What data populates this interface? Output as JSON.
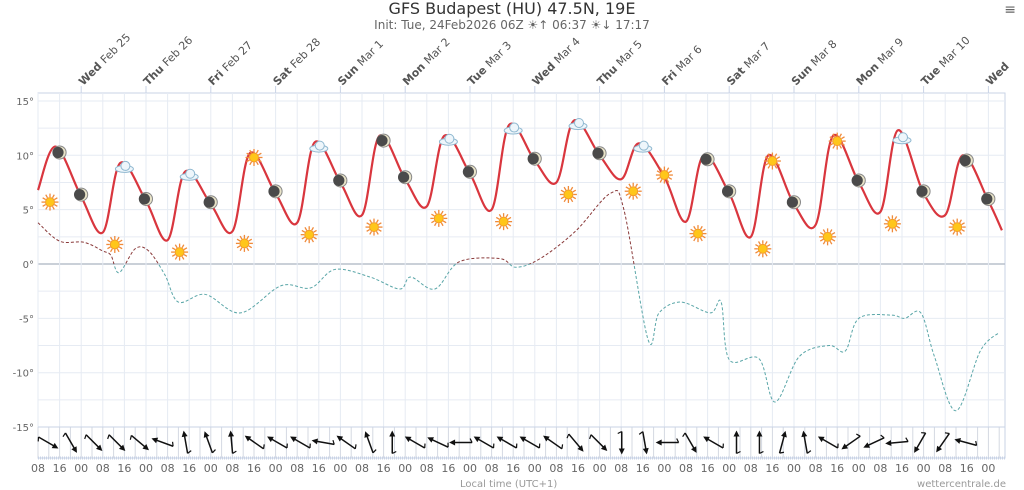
{
  "chart_data": {
    "type": "line",
    "title": "GFS Budapest (HU) 47.5N, 19E",
    "subtitle_init": "Init: Tue, 24Feb2026 06Z",
    "sunrise": "06:37",
    "sunset": "17:17",
    "xlabel": "Local time (UTC+1)",
    "credit": "wettercentrale.de",
    "yticks": [
      "15°",
      "10°",
      "5°",
      "0°",
      "-5°",
      "-10°",
      "-15°"
    ],
    "ytick_values": [
      15,
      10,
      5,
      0,
      -5,
      -10,
      -15
    ],
    "ylim": [
      -15,
      15
    ],
    "x_unit": "hours since Tue Feb 24 08:00",
    "xtick_labels": [
      "08",
      "16",
      "00",
      "08",
      "16",
      "00",
      "08",
      "16",
      "00",
      "08",
      "16",
      "00",
      "08",
      "16",
      "00",
      "08",
      "16",
      "00",
      "08",
      "16",
      "00",
      "08",
      "16",
      "00",
      "08",
      "16",
      "00",
      "08",
      "16",
      "00",
      "08",
      "16",
      "00",
      "08",
      "16",
      "00",
      "08",
      "16",
      "00",
      "08",
      "16",
      "00",
      "08",
      "16",
      "00"
    ],
    "days": [
      {
        "dow": "Wed",
        "date": "Feb 25"
      },
      {
        "dow": "Thu",
        "date": "Feb 26"
      },
      {
        "dow": "Fri",
        "date": "Feb 27"
      },
      {
        "dow": "Sat",
        "date": "Feb 28"
      },
      {
        "dow": "Sun",
        "date": "Mar 1"
      },
      {
        "dow": "Mon",
        "date": "Mar 2"
      },
      {
        "dow": "Tue",
        "date": "Mar 3"
      },
      {
        "dow": "Wed",
        "date": "Mar 4"
      },
      {
        "dow": "Thu",
        "date": "Mar 5"
      },
      {
        "dow": "Fri",
        "date": "Mar 6"
      },
      {
        "dow": "Sat",
        "date": "Mar 7"
      },
      {
        "dow": "Sun",
        "date": "Mar 8"
      },
      {
        "dow": "Mon",
        "date": "Mar 9"
      },
      {
        "dow": "Tue",
        "date": "Mar 10"
      },
      {
        "dow": "Wed",
        "date": ""
      }
    ],
    "series": [
      {
        "name": "Temperature",
        "color": "#d9363e",
        "daily": [
          [
            6.8,
            10.8,
            6.2
          ],
          [
            2.9,
            9.3,
            5.8
          ],
          [
            2.2,
            8.5,
            5.5
          ],
          [
            3.0,
            10.2,
            6.5
          ],
          [
            3.8,
            11.2,
            7.5
          ],
          [
            4.5,
            11.8,
            7.8
          ],
          [
            5.3,
            11.8,
            8.3
          ],
          [
            5.0,
            12.8,
            9.5
          ],
          [
            7.5,
            13.2,
            10.0
          ],
          [
            7.8,
            11.1,
            8.0
          ],
          [
            3.9,
            10.0,
            6.5
          ],
          [
            2.5,
            10.0,
            5.5
          ],
          [
            3.6,
            11.8,
            7.5
          ],
          [
            4.8,
            12.3,
            6.5
          ],
          [
            4.5,
            10.0,
            5.8
          ]
        ],
        "end": [
          357,
          3.1
        ]
      },
      {
        "name": "Dew point",
        "color_above": "#8a3a3a",
        "color_below": "#5aa6a8",
        "points": [
          [
            0,
            3.8
          ],
          [
            8,
            2.1
          ],
          [
            17,
            2.0
          ],
          [
            24,
            1.2
          ],
          [
            27,
            0.8
          ],
          [
            30,
            -0.8
          ],
          [
            36,
            1.4
          ],
          [
            41,
            1.2
          ],
          [
            47,
            -1
          ],
          [
            52,
            -3.5
          ],
          [
            62,
            -2.8
          ],
          [
            75,
            -4.5
          ],
          [
            90,
            -2
          ],
          [
            101,
            -2.2
          ],
          [
            110,
            -0.5
          ],
          [
            123,
            -1.2
          ],
          [
            134,
            -2.3
          ],
          [
            138,
            -1.2
          ],
          [
            147,
            -2.3
          ],
          [
            156,
            0.2
          ],
          [
            171,
            0.5
          ],
          [
            177,
            -0.3
          ],
          [
            186,
            0.5
          ],
          [
            199,
            3
          ],
          [
            212,
            6.5
          ],
          [
            217,
            5
          ],
          [
            226,
            -7
          ],
          [
            230,
            -4.5
          ],
          [
            238,
            -3.5
          ],
          [
            249,
            -4.5
          ],
          [
            253,
            -3.5
          ],
          [
            256,
            -8.8
          ],
          [
            267,
            -8.7
          ],
          [
            273,
            -12.7
          ],
          [
            282,
            -8.5
          ],
          [
            293,
            -7.5
          ],
          [
            299,
            -8
          ],
          [
            304,
            -5
          ],
          [
            316,
            -4.7
          ],
          [
            321,
            -5
          ],
          [
            327,
            -4.5
          ],
          [
            332,
            -8.5
          ],
          [
            340,
            -13.5
          ],
          [
            349,
            -8
          ],
          [
            356,
            -6.3
          ]
        ]
      }
    ],
    "weather_icons": [
      "sun",
      "moon",
      "moon",
      "sun",
      "cloud",
      "moon",
      "sun",
      "cloud",
      "moon",
      "sun",
      "sun",
      "moon",
      "sun",
      "cloud",
      "moon",
      "sun",
      "moon",
      "moon",
      "sun",
      "cloud",
      "moon",
      "sun",
      "cloud",
      "moon",
      "sun",
      "cloud",
      "moon",
      "sun",
      "cloud",
      "sun",
      "sun",
      "moon",
      "moon",
      "sun",
      "sun",
      "moon",
      "sun",
      "sun",
      "moon",
      "sun",
      "cloud",
      "moon",
      "sun",
      "moon",
      "moon"
    ],
    "wind_direction_deg": [
      120,
      150,
      135,
      135,
      130,
      290,
      350,
      340,
      355,
      305,
      300,
      300,
      280,
      305,
      340,
      0,
      300,
      295,
      270,
      300,
      300,
      300,
      305,
      140,
      135,
      180,
      170,
      270,
      150,
      300,
      0,
      0,
      15,
      350,
      300,
      235,
      245,
      265,
      210,
      215,
      285
    ]
  }
}
